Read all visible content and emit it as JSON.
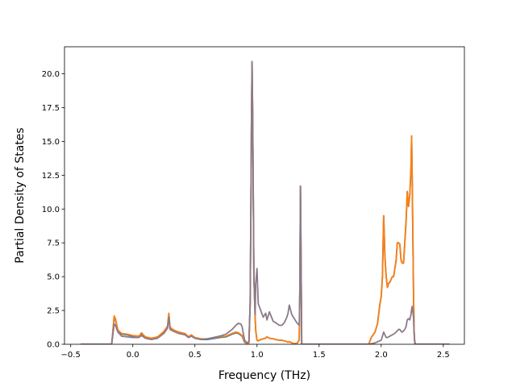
{
  "chart_data": {
    "type": "line",
    "title": "",
    "xlabel": "Frequency (THz)",
    "ylabel": "Partial Density of States",
    "xlim": [
      -0.55,
      2.67
    ],
    "ylim": [
      0,
      22
    ],
    "xticks": [
      -0.5,
      0.0,
      0.5,
      1.0,
      1.5,
      2.0,
      2.5
    ],
    "xtick_labels": [
      "−0.5",
      "0.0",
      "0.5",
      "1.0",
      "1.5",
      "2.0",
      "2.5"
    ],
    "yticks": [
      0.0,
      2.5,
      5.0,
      7.5,
      10.0,
      12.5,
      15.0,
      17.5,
      20.0
    ],
    "ytick_labels": [
      "0.0",
      "2.5",
      "5.0",
      "7.5",
      "10.0",
      "12.5",
      "15.0",
      "17.5",
      "20.0"
    ],
    "grid": false,
    "series": [
      {
        "color": "#1f77b4",
        "x": [
          -0.42,
          -0.17,
          -0.15,
          -0.14,
          -0.12,
          -0.09,
          -0.05,
          0.0,
          0.05,
          0.07,
          0.1,
          0.15,
          0.2,
          0.25,
          0.28,
          0.29,
          0.3,
          0.33,
          0.37,
          0.42,
          0.45,
          0.47,
          0.5,
          0.55,
          0.6,
          0.7,
          0.75,
          0.8,
          0.83,
          0.85,
          0.88,
          0.9,
          0.92,
          0.935,
          0.945,
          0.95,
          0.955,
          0.96,
          0.965,
          0.975,
          0.985,
          0.99,
          1.0,
          1.01,
          1.03,
          1.05,
          1.07,
          1.08,
          1.1,
          1.13,
          1.15,
          1.18,
          1.2,
          1.22,
          1.24,
          1.25,
          1.26,
          1.28,
          1.3,
          1.32,
          1.34,
          1.345,
          1.35,
          1.355,
          1.36,
          1.37,
          1.38,
          1.9,
          1.92,
          1.95,
          1.97,
          1.99,
          2.0,
          2.01,
          2.02,
          2.03,
          2.04,
          2.05,
          2.06,
          2.07,
          2.09,
          2.1,
          2.12,
          2.13,
          2.14,
          2.15,
          2.16,
          2.17,
          2.18,
          2.19,
          2.2,
          2.21,
          2.22,
          2.23,
          2.24,
          2.245,
          2.25,
          2.26,
          2.265,
          2.27,
          2.275,
          2.28,
          2.3,
          2.55
        ],
        "y": [
          0.0,
          0.0,
          2.0,
          1.8,
          1.0,
          0.75,
          0.7,
          0.6,
          0.6,
          0.8,
          0.5,
          0.4,
          0.5,
          0.9,
          1.3,
          2.2,
          1.2,
          1.0,
          0.85,
          0.75,
          0.5,
          0.65,
          0.45,
          0.35,
          0.35,
          0.5,
          0.55,
          0.75,
          0.85,
          0.8,
          0.6,
          0.15,
          0.05,
          0.1,
          3.0,
          9.0,
          16.0,
          20.9,
          17.0,
          5.0,
          2.0,
          1.0,
          0.3,
          0.25,
          0.35,
          0.4,
          0.45,
          0.55,
          0.45,
          0.4,
          0.35,
          0.3,
          0.3,
          0.25,
          0.2,
          0.15,
          0.2,
          0.1,
          0.05,
          0.05,
          0.3,
          4.0,
          11.7,
          6.0,
          0.0,
          0.0,
          0.0,
          0.0,
          0.5,
          0.9,
          1.5,
          3.0,
          3.5,
          5.0,
          9.5,
          6.5,
          5.0,
          4.2,
          4.5,
          4.6,
          5.0,
          5.0,
          6.2,
          7.5,
          7.5,
          7.4,
          6.2,
          6.0,
          6.0,
          7.5,
          9.0,
          11.3,
          10.2,
          11.0,
          13.0,
          15.4,
          12.0,
          4.0,
          1.0,
          0.1,
          0.0,
          0.0,
          0.0,
          0.0
        ]
      },
      {
        "color": "#ff7f0e",
        "x": [
          -0.42,
          -0.17,
          -0.15,
          -0.14,
          -0.12,
          -0.09,
          -0.05,
          0.0,
          0.05,
          0.07,
          0.1,
          0.15,
          0.2,
          0.25,
          0.28,
          0.29,
          0.3,
          0.33,
          0.37,
          0.42,
          0.45,
          0.47,
          0.5,
          0.55,
          0.6,
          0.7,
          0.75,
          0.8,
          0.83,
          0.85,
          0.88,
          0.9,
          0.92,
          0.935,
          0.945,
          0.95,
          0.955,
          0.96,
          0.965,
          0.975,
          0.985,
          0.99,
          1.0,
          1.01,
          1.03,
          1.05,
          1.07,
          1.08,
          1.1,
          1.13,
          1.15,
          1.18,
          1.2,
          1.22,
          1.24,
          1.25,
          1.26,
          1.28,
          1.3,
          1.32,
          1.34,
          1.345,
          1.35,
          1.355,
          1.36,
          1.37,
          1.38,
          1.9,
          1.92,
          1.95,
          1.97,
          1.99,
          2.0,
          2.01,
          2.02,
          2.03,
          2.04,
          2.05,
          2.06,
          2.07,
          2.09,
          2.1,
          2.12,
          2.13,
          2.14,
          2.15,
          2.16,
          2.17,
          2.18,
          2.19,
          2.2,
          2.21,
          2.22,
          2.23,
          2.24,
          2.245,
          2.25,
          2.26,
          2.265,
          2.27,
          2.275,
          2.28,
          2.3,
          2.55
        ],
        "y": [
          0.0,
          0.0,
          2.1,
          1.9,
          1.05,
          0.8,
          0.75,
          0.65,
          0.6,
          0.85,
          0.55,
          0.45,
          0.55,
          0.95,
          1.35,
          2.3,
          1.25,
          1.05,
          0.9,
          0.8,
          0.55,
          0.7,
          0.5,
          0.4,
          0.4,
          0.55,
          0.6,
          0.8,
          0.9,
          0.85,
          0.65,
          0.2,
          0.05,
          0.1,
          3.0,
          9.0,
          16.0,
          20.9,
          17.0,
          5.0,
          2.0,
          1.0,
          0.3,
          0.25,
          0.35,
          0.4,
          0.45,
          0.55,
          0.45,
          0.4,
          0.35,
          0.3,
          0.3,
          0.25,
          0.2,
          0.15,
          0.2,
          0.1,
          0.05,
          0.05,
          0.3,
          4.0,
          11.7,
          6.0,
          0.0,
          0.0,
          0.0,
          0.0,
          0.5,
          0.9,
          1.5,
          3.0,
          3.5,
          5.0,
          9.5,
          6.5,
          5.0,
          4.2,
          4.5,
          4.6,
          5.0,
          5.0,
          6.2,
          7.5,
          7.5,
          7.4,
          6.2,
          6.0,
          6.0,
          7.5,
          9.0,
          11.3,
          10.2,
          11.0,
          13.0,
          15.4,
          12.0,
          4.0,
          1.0,
          0.1,
          0.0,
          0.0,
          0.0,
          0.0
        ]
      },
      {
        "color": "#8c7a8a",
        "x": [
          -0.42,
          -0.17,
          -0.15,
          -0.14,
          -0.12,
          -0.09,
          -0.05,
          0.0,
          0.05,
          0.07,
          0.1,
          0.15,
          0.2,
          0.25,
          0.28,
          0.29,
          0.3,
          0.33,
          0.37,
          0.42,
          0.45,
          0.47,
          0.5,
          0.55,
          0.6,
          0.7,
          0.75,
          0.8,
          0.83,
          0.85,
          0.87,
          0.88,
          0.9,
          0.92,
          0.935,
          0.945,
          0.95,
          0.955,
          0.96,
          0.965,
          0.975,
          0.985,
          0.99,
          1.0,
          1.01,
          1.03,
          1.05,
          1.07,
          1.08,
          1.1,
          1.13,
          1.15,
          1.18,
          1.2,
          1.22,
          1.24,
          1.25,
          1.26,
          1.28,
          1.3,
          1.32,
          1.34,
          1.345,
          1.35,
          1.355,
          1.36,
          1.37,
          1.38,
          1.9,
          1.95,
          2.0,
          2.01,
          2.02,
          2.03,
          2.04,
          2.05,
          2.07,
          2.09,
          2.1,
          2.12,
          2.13,
          2.14,
          2.15,
          2.16,
          2.17,
          2.18,
          2.19,
          2.2,
          2.21,
          2.22,
          2.23,
          2.24,
          2.245,
          2.25,
          2.26,
          2.265,
          2.27,
          2.275,
          2.28,
          2.3,
          2.55
        ],
        "y": [
          0.0,
          0.0,
          1.5,
          1.4,
          0.9,
          0.6,
          0.55,
          0.5,
          0.5,
          0.65,
          0.45,
          0.35,
          0.45,
          0.8,
          1.2,
          2.0,
          1.1,
          0.95,
          0.8,
          0.7,
          0.5,
          0.6,
          0.45,
          0.35,
          0.4,
          0.6,
          0.75,
          1.1,
          1.4,
          1.55,
          1.5,
          1.3,
          0.3,
          0.1,
          0.2,
          3.0,
          9.0,
          16.0,
          20.9,
          17.0,
          5.0,
          2.2,
          4.5,
          5.6,
          3.0,
          2.5,
          2.0,
          2.3,
          1.8,
          2.4,
          1.7,
          1.6,
          1.4,
          1.4,
          1.6,
          2.0,
          2.3,
          2.9,
          2.2,
          1.9,
          1.6,
          1.4,
          4.0,
          11.7,
          6.0,
          0.0,
          0.0,
          0.0,
          0.0,
          0.1,
          0.3,
          0.6,
          0.9,
          0.7,
          0.5,
          0.5,
          0.6,
          0.7,
          0.75,
          0.9,
          1.0,
          1.1,
          1.1,
          0.95,
          0.9,
          1.0,
          1.1,
          1.3,
          1.8,
          1.9,
          1.8,
          2.2,
          2.6,
          2.8,
          2.0,
          0.8,
          0.2,
          0.05,
          0.0,
          0.0,
          0.0
        ]
      }
    ]
  }
}
